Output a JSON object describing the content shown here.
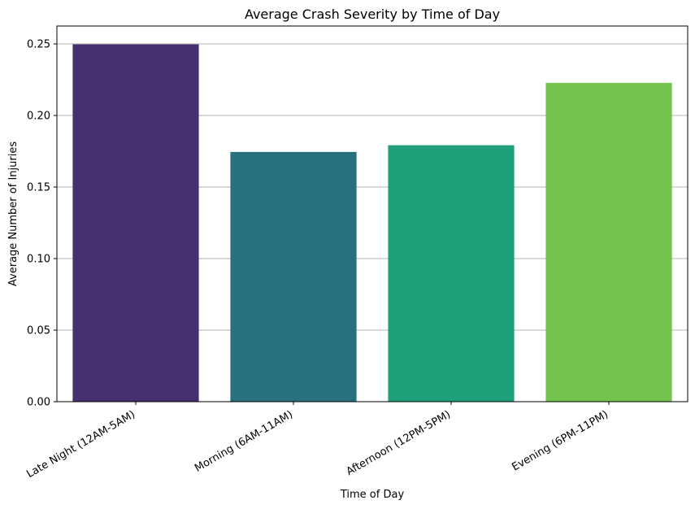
{
  "chart_data": {
    "type": "bar",
    "title": "Average Crash Severity by Time of Day",
    "xlabel": "Time of Day",
    "ylabel": "Average Number of Injuries",
    "categories": [
      "Late Night (12AM-5AM)",
      "Morning (6AM-11AM)",
      "Afternoon (12PM-5PM)",
      "Evening (6PM-11PM)"
    ],
    "values": [
      0.2497,
      0.1745,
      0.1792,
      0.2228
    ],
    "colors": [
      "#482f70",
      "#27707d",
      "#1fa07a",
      "#74c34e"
    ],
    "ylim": [
      0,
      0.2625
    ],
    "yticks": [
      0.0,
      0.05,
      0.1,
      0.15,
      0.2,
      0.25
    ],
    "ytick_labels": [
      "0.00",
      "0.05",
      "0.10",
      "0.15",
      "0.20",
      "0.25"
    ],
    "grid": "y-axis",
    "legend": "none"
  }
}
